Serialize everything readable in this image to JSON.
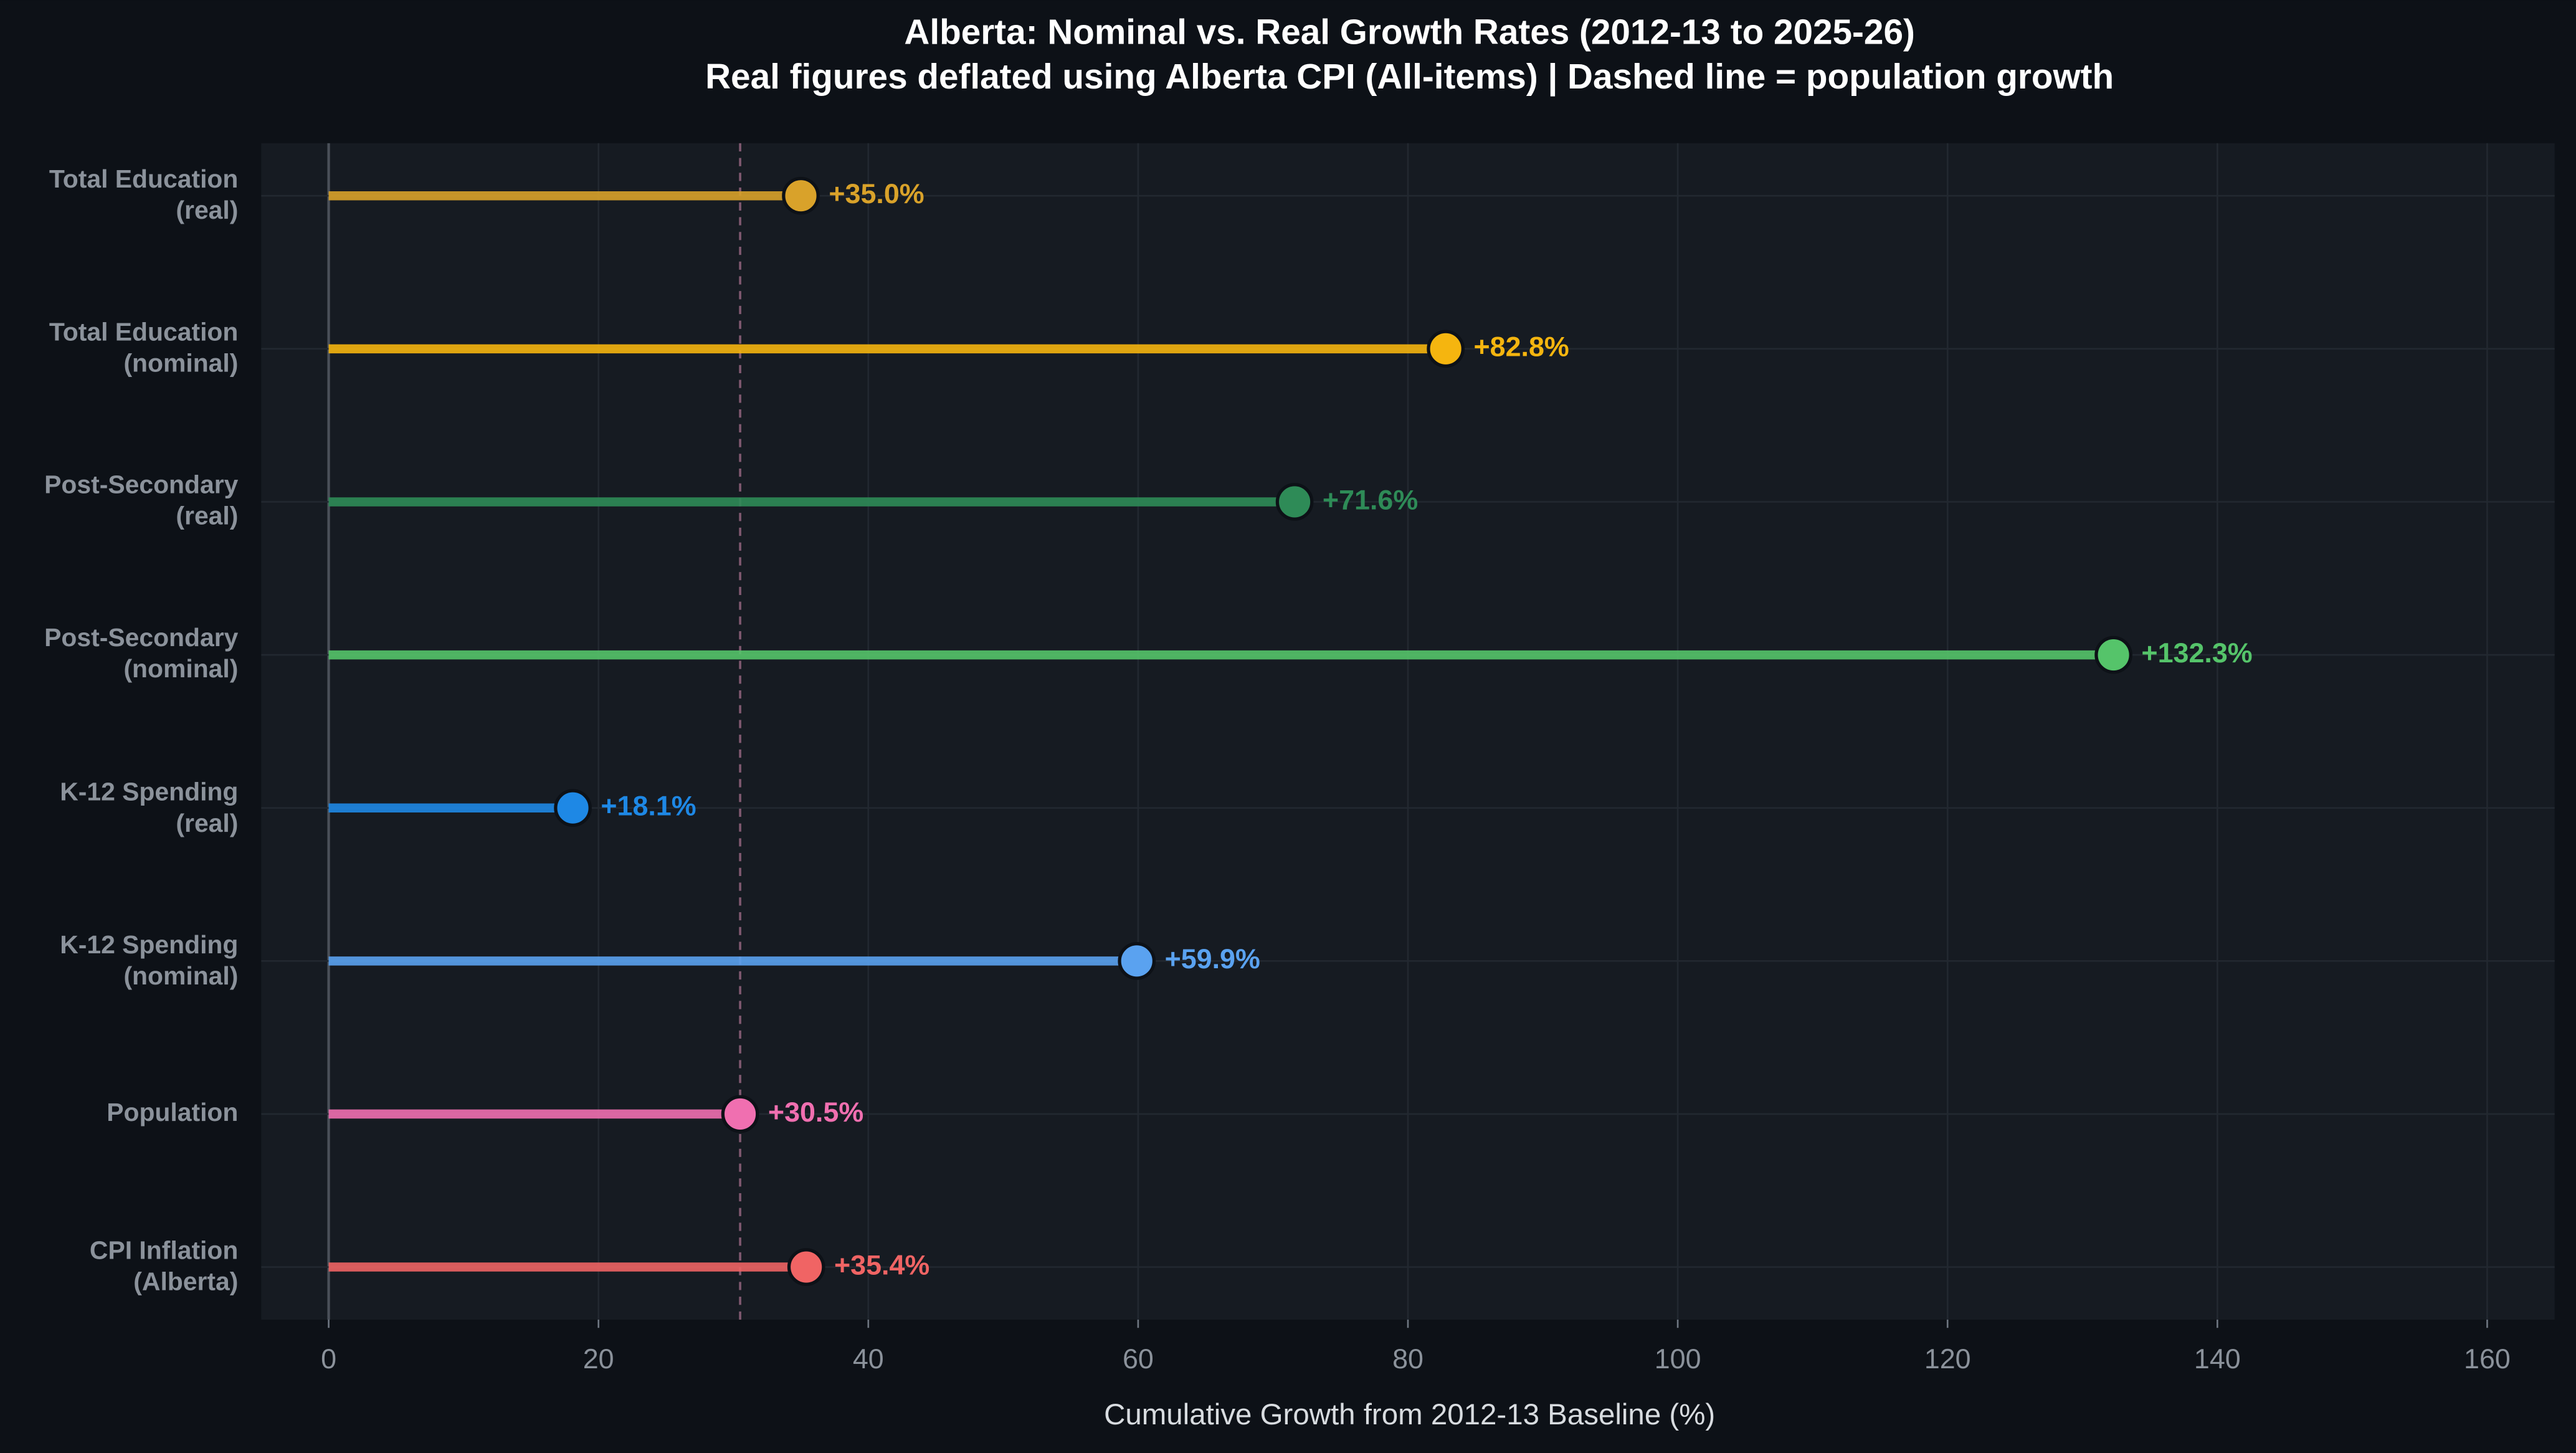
{
  "chart_data": {
    "type": "lollipop",
    "title": "Alberta: Nominal vs. Real Growth Rates (2012-13 to 2025-26)",
    "subtitle": "Real figures deflated using Alberta CPI (All-items)  |  Dashed line = population growth",
    "x_label": "Cumulative Growth from 2012-13 Baseline (%)",
    "categories": [
      "Total Education\n(real)",
      "Total Education\n(nominal)",
      "Post-Secondary\n(real)",
      "Post-Secondary\n(nominal)",
      "K-12 Spending\n(real)",
      "K-12 Spending\n(nominal)",
      "Population",
      "CPI Inflation\n(Alberta)"
    ],
    "values": [
      35.0,
      82.8,
      71.6,
      132.3,
      18.1,
      59.9,
      30.5,
      35.4
    ],
    "value_labels": [
      "+35.0%",
      "+82.8%",
      "+71.6%",
      "+132.3%",
      "+18.1%",
      "+59.9%",
      "+30.5%",
      "+35.4%"
    ],
    "colors": [
      "#d9a22a",
      "#f5b50f",
      "#2e8b57",
      "#55c46a",
      "#1e88e5",
      "#5aa2f0",
      "#f06fb0",
      "#f06464"
    ],
    "xlim": [
      -5,
      165
    ],
    "xticks": [
      0,
      20,
      40,
      60,
      80,
      100,
      120,
      140,
      160
    ],
    "reference_line": 30.5,
    "grid": true
  }
}
